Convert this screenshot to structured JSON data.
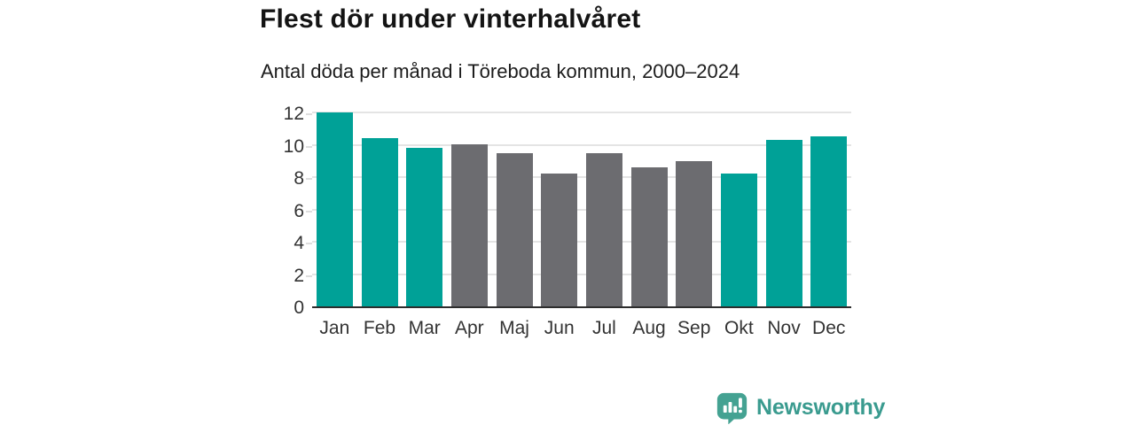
{
  "chart_data": {
    "type": "bar",
    "title": "Flest dör under vinterhalvåret",
    "subtitle": "Antal döda per månad i Töreboda kommun, 2000–2024",
    "categories": [
      "Jan",
      "Feb",
      "Mar",
      "Apr",
      "Maj",
      "Jun",
      "Jul",
      "Aug",
      "Sep",
      "Okt",
      "Nov",
      "Dec"
    ],
    "values": [
      12.0,
      10.4,
      9.8,
      10.0,
      9.5,
      8.2,
      9.5,
      8.6,
      9.0,
      8.2,
      10.3,
      10.5
    ],
    "bar_color_keys": [
      "teal",
      "teal",
      "teal",
      "gray",
      "gray",
      "gray",
      "gray",
      "gray",
      "gray",
      "teal",
      "teal",
      "teal"
    ],
    "palette": {
      "teal": "#00a197",
      "gray": "#6c6c70"
    },
    "xlabel": "",
    "ylabel": "",
    "ylim": [
      0,
      12
    ],
    "yticks": [
      0,
      2,
      4,
      6,
      8,
      10,
      12
    ],
    "grid": "horizontal",
    "legend": "none"
  },
  "footer": {
    "brand": "Newsworthy",
    "brand_color": "#3a9b8f",
    "logo_bubble_color": "#44a292",
    "logo_icon": "bar-chart-speech-bubble-icon"
  }
}
